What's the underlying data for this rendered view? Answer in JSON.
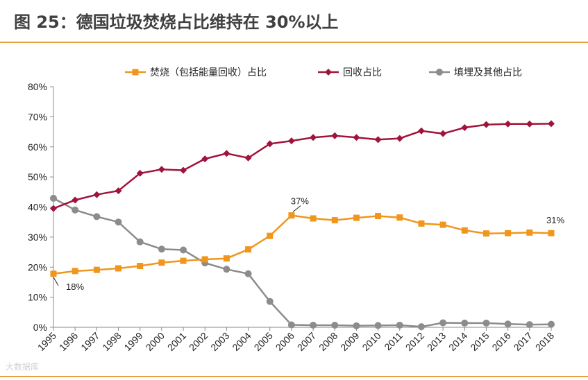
{
  "figure": {
    "title": "图 25：德国垃圾焚烧占比维持在 30%以上",
    "watermark": "大数据库"
  },
  "colors": {
    "incineration": "#f0961c",
    "recycling": "#a0143c",
    "landfill": "#8c8c8c",
    "rule": "#e8a040"
  },
  "chart_data": {
    "type": "line",
    "title": "",
    "xlabel": "",
    "ylabel": "",
    "ylim": [
      0,
      80
    ],
    "y_ticks": [
      "0%",
      "10%",
      "20%",
      "30%",
      "40%",
      "50%",
      "60%",
      "70%",
      "80%"
    ],
    "grid": false,
    "legend_position": "top",
    "categories": [
      "1995",
      "1996",
      "1997",
      "1998",
      "1999",
      "2000",
      "2001",
      "2002",
      "2003",
      "2004",
      "2005",
      "2006",
      "2007",
      "2008",
      "2009",
      "2010",
      "2011",
      "2012",
      "2013",
      "2014",
      "2015",
      "2016",
      "2017",
      "2018"
    ],
    "series": [
      {
        "name": "焚烧（包括能量回收）占比",
        "marker": "square",
        "values": [
          17.8,
          18.7,
          19.1,
          19.6,
          20.4,
          21.5,
          22.1,
          22.6,
          22.9,
          25.9,
          30.4,
          37.2,
          36.2,
          35.6,
          36.4,
          37.0,
          36.5,
          34.5,
          34.1,
          32.2,
          31.2,
          31.3,
          31.5,
          31.3
        ]
      },
      {
        "name": "回收占比",
        "marker": "diamond",
        "values": [
          39.5,
          42.3,
          44.1,
          45.4,
          51.2,
          52.5,
          52.2,
          56.0,
          57.8,
          56.3,
          61.0,
          62.0,
          63.1,
          63.7,
          63.1,
          62.4,
          62.8,
          65.3,
          64.4,
          66.4,
          67.4,
          67.6,
          67.6,
          67.7
        ]
      },
      {
        "name": "填埋及其他占比",
        "marker": "circle",
        "values": [
          42.9,
          39.0,
          36.8,
          35.0,
          28.4,
          26.0,
          25.7,
          21.4,
          19.3,
          17.8,
          8.6,
          0.8,
          0.7,
          0.7,
          0.5,
          0.6,
          0.7,
          0.2,
          1.5,
          1.4,
          1.4,
          1.1,
          0.9,
          1.0
        ]
      }
    ],
    "annotations": [
      {
        "series": 0,
        "index": 0,
        "text": "18%"
      },
      {
        "series": 0,
        "index": 11,
        "text": "37%"
      },
      {
        "series": 0,
        "index": 23,
        "text": "31%"
      }
    ]
  }
}
